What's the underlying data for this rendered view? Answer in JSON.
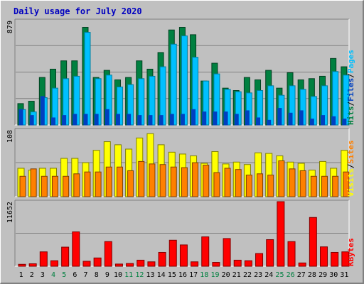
{
  "chart_data": {
    "type": "bar",
    "title": "Daily usage for July 2020",
    "categories": [
      "1",
      "2",
      "3",
      "4",
      "5",
      "6",
      "7",
      "8",
      "9",
      "10",
      "11",
      "12",
      "13",
      "14",
      "15",
      "16",
      "17",
      "18",
      "19",
      "20",
      "21",
      "22",
      "23",
      "24",
      "25",
      "26",
      "27",
      "28",
      "29",
      "30",
      "31"
    ],
    "weekend_days": [
      "4",
      "5",
      "11",
      "12",
      "18",
      "19",
      "25",
      "26"
    ],
    "grid": true,
    "colors": {
      "hits": "#008040",
      "files": "#00c0ff",
      "pages": "#0040c0",
      "visits": "#ffff00",
      "sites": "#ff8000",
      "kbytes": "#ff0000",
      "title": "#0000c0",
      "weekday_label": "#000000",
      "weekend_label": "#008040"
    },
    "panels": [
      {
        "id": "hits-files-pages",
        "ymax_label": "879",
        "ymax": 879,
        "series": [
          {
            "name": "Hits",
            "values": [
              180,
              200,
              400,
              470,
              540,
              540,
              822,
              400,
              460,
              380,
              400,
              540,
              470,
              610,
              800,
              822,
              760,
              370,
              520,
              310,
              290,
              400,
              380,
              460,
              310,
              440,
              380,
              390,
              410,
              560,
              490
            ]
          },
          {
            "name": "Files",
            "values": [
              130,
              110,
              230,
              310,
              390,
              410,
              780,
              390,
              420,
              320,
              340,
              390,
              410,
              490,
              680,
              750,
              570,
              370,
              430,
              300,
              280,
              270,
              290,
              330,
              250,
              330,
              300,
              240,
              330,
              450,
              420
            ]
          },
          {
            "name": "Pages",
            "values": [
              130,
              80,
              240,
              60,
              80,
              90,
              90,
              90,
              130,
              90,
              90,
              80,
              80,
              80,
              90,
              90,
              130,
              110,
              110,
              110,
              90,
              120,
              60,
              40,
              140,
              100,
              120,
              50,
              80,
              70,
              50
            ]
          }
        ],
        "labels": [
          {
            "text": "Hits",
            "color": "#008040"
          },
          {
            "text": "/",
            "color": "#000000"
          },
          {
            "text": "Files",
            "color": "#0040c0"
          },
          {
            "text": "/",
            "color": "#000000"
          },
          {
            "text": "Pages",
            "color": "#00c0ff"
          }
        ]
      },
      {
        "id": "visits-sites",
        "ymax_label": "108",
        "ymax": 108,
        "series": [
          {
            "name": "Visits",
            "values": [
              46,
              43,
              46,
              46,
              62,
              62,
              55,
              75,
              89,
              84,
              77,
              95,
              102,
              84,
              72,
              69,
              66,
              54,
              73,
              53,
              56,
              52,
              71,
              70,
              66,
              56,
              54,
              43,
              57,
              46,
              75
            ]
          },
          {
            "name": "Sites",
            "values": [
              33,
              45,
              33,
              33,
              33,
              37,
              40,
              40,
              48,
              48,
              42,
              57,
              53,
              52,
              48,
              47,
              55,
              51,
              39,
              46,
              44,
              35,
              37,
              35,
              58,
              45,
              42,
              33,
              33,
              33,
              40
            ]
          }
        ],
        "labels": [
          {
            "text": "Visits",
            "color": "#ffff00"
          },
          {
            "text": "/",
            "color": "#000000"
          },
          {
            "text": "Sites",
            "color": "#ff8000"
          }
        ]
      },
      {
        "id": "kbytes",
        "ymax_label": "11652",
        "ymax": 11652,
        "series": [
          {
            "name": "KBytes",
            "values": [
              350,
              450,
              2600,
              1000,
              3450,
              6200,
              900,
              1500,
              4450,
              400,
              500,
              1100,
              800,
              2500,
              4700,
              3850,
              800,
              5300,
              700,
              5000,
              1100,
              1000,
              2300,
              4800,
              11652,
              4450,
              600,
              8800,
              3500,
              2500,
              2600
            ]
          }
        ],
        "labels": [
          {
            "text": "KBytes",
            "color": "#ff0000"
          }
        ]
      }
    ]
  }
}
